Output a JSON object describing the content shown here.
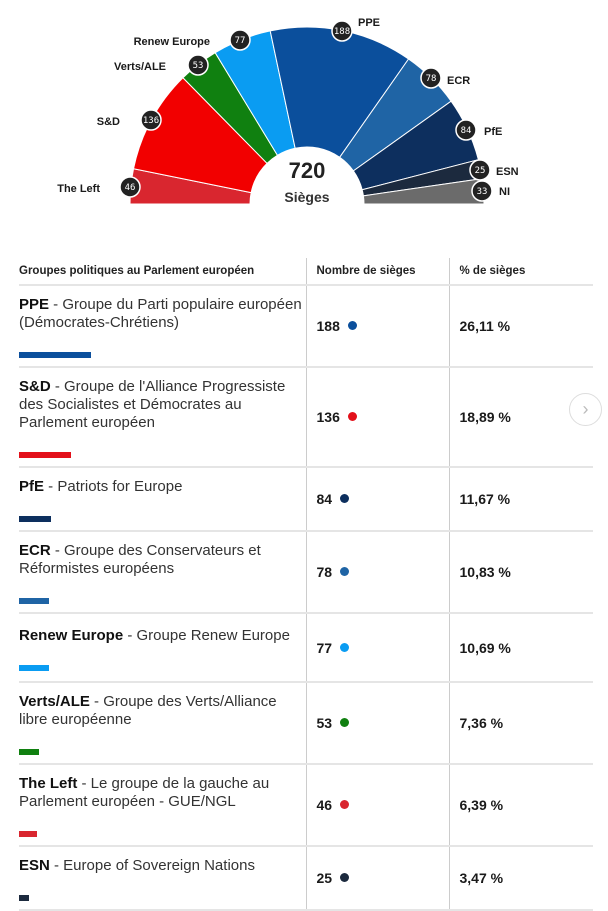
{
  "chart_data": {
    "type": "pie",
    "subtype": "hemicycle",
    "total": "720",
    "total_label": "Sièges",
    "categories": [
      "The Left",
      "S&D",
      "Verts/ALE",
      "Renew Europe",
      "PPE",
      "ECR",
      "PfE",
      "ESN",
      "NI"
    ],
    "values": [
      46,
      136,
      53,
      77,
      188,
      78,
      84,
      25,
      33
    ],
    "colors": [
      "#d9262f",
      "#f20000",
      "#108010",
      "#0a9cf2",
      "#0b4f9c",
      "#1f64a5",
      "#0d2f5e",
      "#1c2a3e",
      "#6b6b6b"
    ]
  },
  "table": {
    "headers": [
      "Groupes politiques au Parlement européen",
      "Nombre de sièges",
      "% de sièges"
    ],
    "rows": [
      {
        "abbr": "PPE",
        "name": " - Groupe du Parti populaire européen (Démocrates-Chrétiens)",
        "seats": "188",
        "pct": "26,11 %",
        "color": "#0b4f9c",
        "value": 188
      },
      {
        "abbr": "S&D",
        "name": " - Groupe de l'Alliance Progressiste des Socialistes et Démocrates au Parlement européen",
        "seats": "136",
        "pct": "18,89 %",
        "color": "#e3101a",
        "value": 136
      },
      {
        "abbr": "PfE",
        "name": " - Patriots for Europe",
        "seats": "84",
        "pct": "11,67 %",
        "color": "#0d2f5e",
        "value": 84
      },
      {
        "abbr": "ECR",
        "name": " - Groupe des Conservateurs et Réformistes européens",
        "seats": "78",
        "pct": "10,83 %",
        "color": "#1f64a5",
        "value": 78
      },
      {
        "abbr": "Renew Europe",
        "name": " - Groupe Renew Europe",
        "seats": "77",
        "pct": "10,69 %",
        "color": "#0a9cf2",
        "value": 77
      },
      {
        "abbr": "Verts/ALE",
        "name": " - Groupe des Verts/Alliance libre européenne",
        "seats": "53",
        "pct": "7,36 %",
        "color": "#108010",
        "value": 53
      },
      {
        "abbr": "The Left",
        "name": " - Le groupe de la gauche au Parlement européen - GUE/NGL",
        "seats": "46",
        "pct": "6,39 %",
        "color": "#d9262f",
        "value": 46
      },
      {
        "abbr": "ESN",
        "name": " - Europe of Sovereign Nations",
        "seats": "25",
        "pct": "3,47 %",
        "color": "#1c2a3e",
        "value": 25
      }
    ]
  },
  "next_icon": "chevron-right-icon"
}
